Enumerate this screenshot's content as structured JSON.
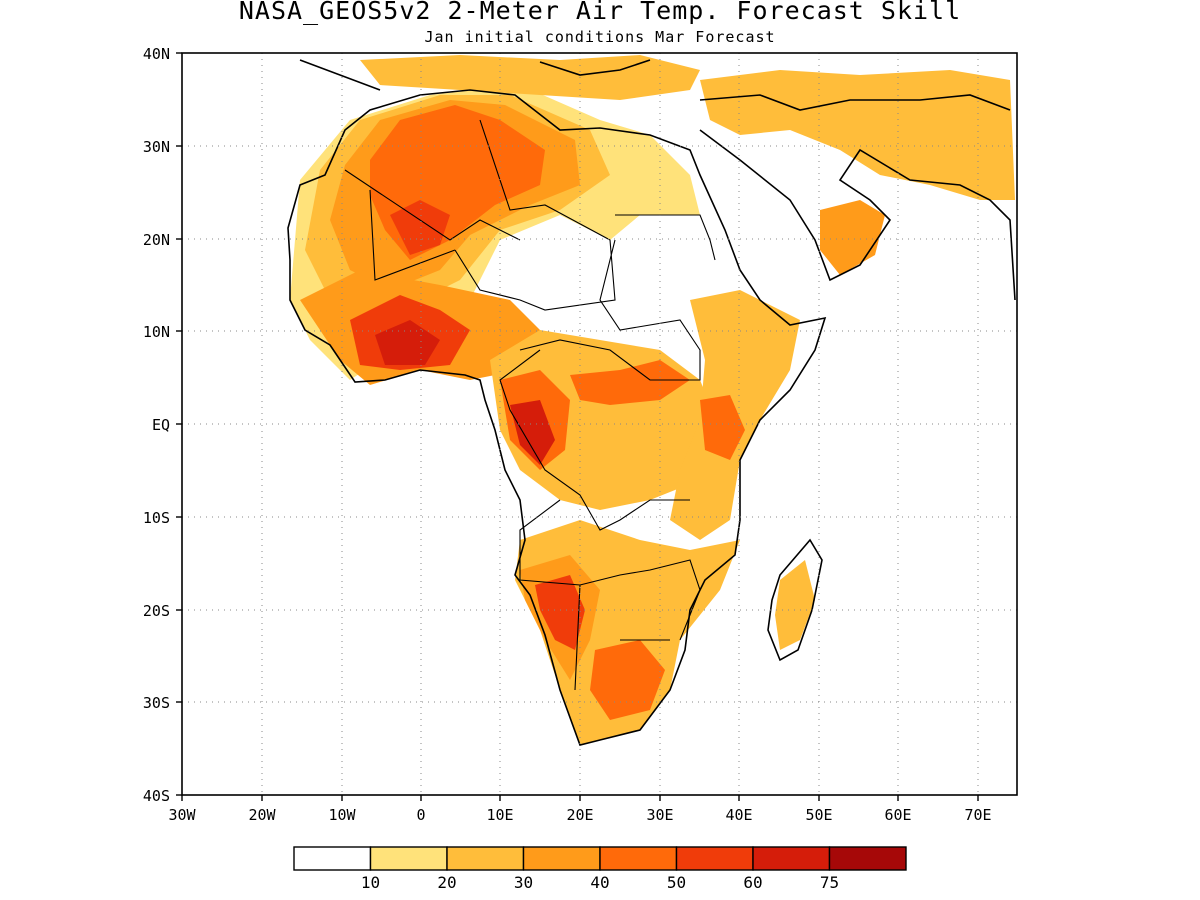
{
  "title": "NASA_GEOS5v2 2-Meter Air Temp. Forecast Skill",
  "subtitle": "Jan initial conditions  Mar Forecast",
  "lat_ticks": [
    "40N",
    "30N",
    "20N",
    "10N",
    "EQ",
    "10S",
    "20S",
    "30S",
    "40S"
  ],
  "lon_ticks": [
    "30W",
    "20W",
    "10W",
    "0",
    "10E",
    "20E",
    "30E",
    "40E",
    "50E",
    "60E",
    "70E"
  ],
  "colorbar": {
    "colors": [
      "#ffffff",
      "#ffe27a",
      "#ffbd3a",
      "#ff9b1a",
      "#ff6a0a",
      "#f03c0a",
      "#d51d0a",
      "#a60808"
    ],
    "labels": [
      "10",
      "20",
      "30",
      "40",
      "50",
      "60",
      "75"
    ]
  },
  "palette": {
    "skill_10_20": "#ffe27a",
    "skill_20_30": "#ffbd3a",
    "skill_30_40": "#ff9b1a",
    "skill_40_50": "#ff6a0a",
    "skill_50_60": "#f03c0a",
    "skill_60_75": "#d51d0a",
    "skill_75_plus": "#a60808"
  }
}
